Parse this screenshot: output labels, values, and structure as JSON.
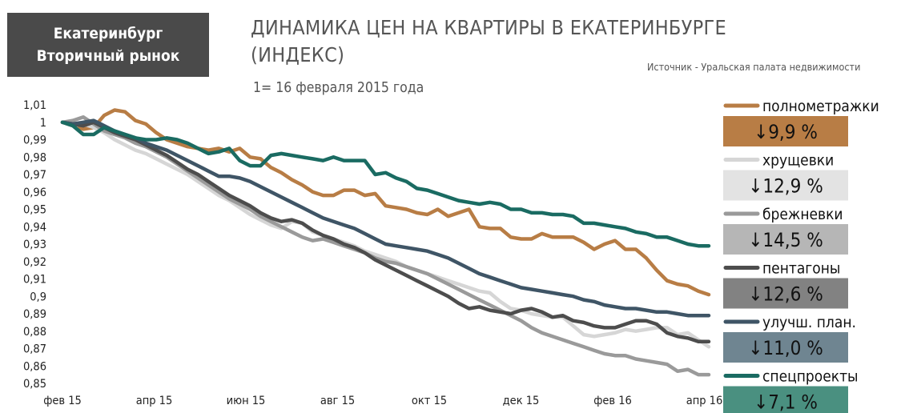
{
  "badge": {
    "line1": "Екатеринбург",
    "line2": "Вторичный рынок"
  },
  "title": "ДИНАМИКА ЦЕН НА КВАРТИРЫ В ЕКАТЕРИНБУРГЕ (ИНДЕКС)",
  "source": "Источник - Уральская палата недвижимости",
  "subtitle": "1= 16 февраля 2015 года",
  "chart_data": {
    "type": "line",
    "title": "ДИНАМИКА ЦЕН НА КВАРТИРЫ В ЕКАТЕРИНБУРГЕ (ИНДЕКС)",
    "ylim": [
      0.85,
      1.01
    ],
    "y_ticks": [
      "1,01",
      "1",
      "0,99",
      "0,98",
      "0,97",
      "0,96",
      "0,95",
      "0,94",
      "0,93",
      "0,92",
      "0,91",
      "0,9",
      "0,89",
      "0,88",
      "0,87",
      "0,86",
      "0,85"
    ],
    "x_ticks": [
      "фев 15",
      "апр 15",
      "июн 15",
      "авг 15",
      "окт 15",
      "дек 15",
      "фев 16",
      "апр 16"
    ],
    "grid": false,
    "legend_position": "right",
    "series": [
      {
        "name": "полнометражки",
        "change": "↓9,9 %",
        "color": "#b87d45",
        "box_color": "#b87d45",
        "values": [
          1.0,
          0.998,
          0.996,
          0.997,
          1.004,
          1.007,
          1.006,
          1.001,
          0.999,
          0.994,
          0.99,
          0.988,
          0.986,
          0.985,
          0.984,
          0.985,
          0.983,
          0.985,
          0.98,
          0.979,
          0.974,
          0.971,
          0.967,
          0.964,
          0.96,
          0.958,
          0.958,
          0.961,
          0.961,
          0.958,
          0.959,
          0.952,
          0.951,
          0.95,
          0.948,
          0.947,
          0.95,
          0.946,
          0.948,
          0.95,
          0.94,
          0.939,
          0.939,
          0.934,
          0.933,
          0.933,
          0.936,
          0.934,
          0.934,
          0.934,
          0.931,
          0.927,
          0.93,
          0.932,
          0.927,
          0.927,
          0.922,
          0.915,
          0.909,
          0.907,
          0.906,
          0.903,
          0.901
        ]
      },
      {
        "name": "хрущевки",
        "change": "↓12,9 %",
        "color": "#d6d6d6",
        "box_color": "#e3e3e3",
        "values": [
          1.0,
          0.998,
          0.999,
          0.997,
          0.994,
          0.99,
          0.987,
          0.984,
          0.982,
          0.979,
          0.976,
          0.973,
          0.97,
          0.966,
          0.962,
          0.958,
          0.955,
          0.951,
          0.947,
          0.944,
          0.941,
          0.939,
          0.943,
          0.942,
          0.937,
          0.935,
          0.933,
          0.931,
          0.929,
          0.926,
          0.924,
          0.922,
          0.92,
          0.917,
          0.915,
          0.913,
          0.911,
          0.909,
          0.907,
          0.905,
          0.903,
          0.902,
          0.897,
          0.893,
          0.892,
          0.89,
          0.889,
          0.888,
          0.888,
          0.883,
          0.878,
          0.877,
          0.878,
          0.879,
          0.881,
          0.88,
          0.881,
          0.882,
          0.882,
          0.878,
          0.879,
          0.875,
          0.871
        ]
      },
      {
        "name": "брежневки",
        "change": "↓14,5 %",
        "color": "#9a9a9a",
        "box_color": "#b6b6b6",
        "values": [
          1.0,
          1.001,
          1.003,
          0.999,
          0.995,
          0.993,
          0.991,
          0.988,
          0.986,
          0.983,
          0.98,
          0.976,
          0.972,
          0.968,
          0.964,
          0.96,
          0.956,
          0.953,
          0.95,
          0.946,
          0.943,
          0.94,
          0.937,
          0.934,
          0.932,
          0.933,
          0.931,
          0.929,
          0.927,
          0.925,
          0.922,
          0.92,
          0.919,
          0.917,
          0.915,
          0.913,
          0.91,
          0.907,
          0.904,
          0.901,
          0.898,
          0.895,
          0.892,
          0.889,
          0.886,
          0.882,
          0.879,
          0.877,
          0.875,
          0.873,
          0.871,
          0.869,
          0.867,
          0.866,
          0.866,
          0.864,
          0.863,
          0.862,
          0.861,
          0.857,
          0.858,
          0.855,
          0.855
        ]
      },
      {
        "name": "пентагоны",
        "change": "↓12,6 %",
        "color": "#4d4d4d",
        "box_color": "#828282",
        "values": [
          1.0,
          0.999,
          0.998,
          1.0,
          0.997,
          0.994,
          0.992,
          0.99,
          0.987,
          0.984,
          0.981,
          0.977,
          0.973,
          0.97,
          0.966,
          0.962,
          0.958,
          0.955,
          0.952,
          0.948,
          0.945,
          0.943,
          0.944,
          0.942,
          0.938,
          0.935,
          0.933,
          0.93,
          0.928,
          0.925,
          0.921,
          0.918,
          0.915,
          0.912,
          0.909,
          0.906,
          0.903,
          0.9,
          0.896,
          0.893,
          0.894,
          0.892,
          0.891,
          0.89,
          0.892,
          0.893,
          0.891,
          0.888,
          0.889,
          0.886,
          0.885,
          0.883,
          0.882,
          0.882,
          0.884,
          0.886,
          0.886,
          0.884,
          0.879,
          0.877,
          0.876,
          0.874,
          0.874
        ]
      },
      {
        "name": "улучш. план.",
        "change": "↓11,0 %",
        "color": "#3f5566",
        "box_color": "#6f8591",
        "values": [
          1.0,
          0.999,
          1.0,
          1.001,
          0.998,
          0.995,
          0.993,
          0.991,
          0.988,
          0.986,
          0.984,
          0.981,
          0.978,
          0.975,
          0.972,
          0.969,
          0.969,
          0.968,
          0.966,
          0.963,
          0.96,
          0.957,
          0.954,
          0.951,
          0.948,
          0.945,
          0.943,
          0.941,
          0.939,
          0.936,
          0.933,
          0.93,
          0.929,
          0.928,
          0.927,
          0.926,
          0.924,
          0.922,
          0.919,
          0.916,
          0.913,
          0.911,
          0.909,
          0.907,
          0.905,
          0.904,
          0.903,
          0.902,
          0.901,
          0.9,
          0.898,
          0.897,
          0.895,
          0.894,
          0.893,
          0.893,
          0.892,
          0.891,
          0.891,
          0.89,
          0.889,
          0.889,
          0.889
        ]
      },
      {
        "name": "спецпроекты",
        "change": "↓7,1 %",
        "color": "#1a6b62",
        "box_color": "#4a9080",
        "values": [
          1.0,
          0.998,
          0.993,
          0.993,
          0.997,
          0.995,
          0.993,
          0.991,
          0.99,
          0.99,
          0.991,
          0.99,
          0.988,
          0.985,
          0.982,
          0.983,
          0.985,
          0.978,
          0.975,
          0.975,
          0.981,
          0.982,
          0.981,
          0.98,
          0.979,
          0.978,
          0.98,
          0.978,
          0.978,
          0.978,
          0.97,
          0.971,
          0.968,
          0.966,
          0.962,
          0.961,
          0.959,
          0.957,
          0.955,
          0.954,
          0.953,
          0.954,
          0.953,
          0.95,
          0.95,
          0.948,
          0.948,
          0.947,
          0.947,
          0.946,
          0.942,
          0.942,
          0.941,
          0.94,
          0.939,
          0.937,
          0.936,
          0.934,
          0.934,
          0.932,
          0.93,
          0.929,
          0.929
        ]
      }
    ]
  }
}
